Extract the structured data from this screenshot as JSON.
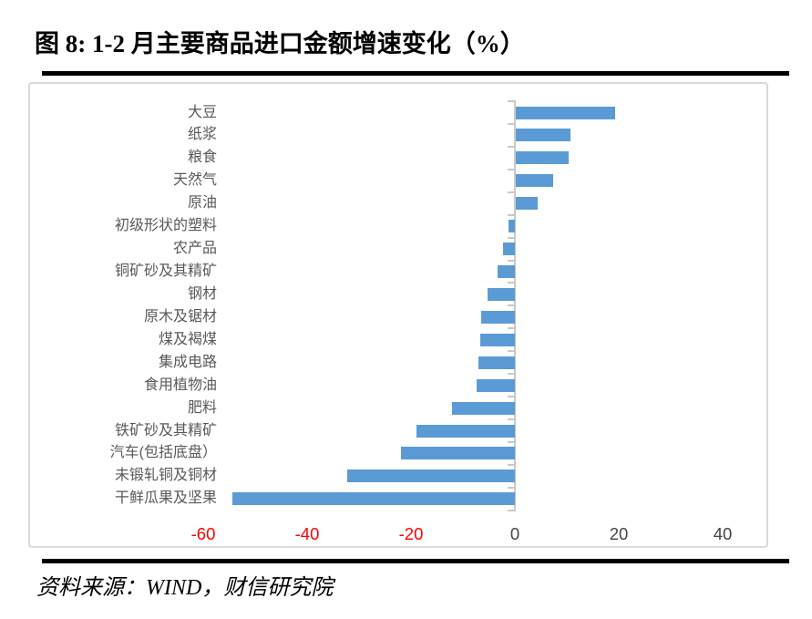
{
  "title": "图 8: 1-2 月主要商品进口金额增速变化（%）",
  "source": "资料来源：WIND，财信研究院",
  "chart_data": {
    "type": "bar",
    "orientation": "horizontal",
    "title": "图 8: 1-2 月主要商品进口金额增速变化（%）",
    "unit": "%",
    "categories": [
      "大豆",
      "纸浆",
      "粮食",
      "天然气",
      "原油",
      "初级形状的塑料",
      "农产品",
      "铜矿砂及其精矿",
      "钢材",
      "原木及锯材",
      "煤及褐煤",
      "集成电路",
      "食用植物油",
      "肥料",
      "铁矿砂及其精矿",
      "汽车(包括底盘）",
      "未锻轧铜及铜材",
      "干鲜瓜果及坚果"
    ],
    "values": [
      19.1,
      10.5,
      10.2,
      7.2,
      4.2,
      -1.2,
      -2.2,
      -3.3,
      -5.3,
      -6.5,
      -6.7,
      -7.0,
      -7.3,
      -12.1,
      -18.9,
      -21.9,
      -32.3,
      -54.3
    ],
    "x_ticks": [
      -60,
      -40,
      -20,
      0,
      20,
      40
    ],
    "xlim": [
      -65,
      49
    ],
    "grid": false,
    "legend": false,
    "colors": {
      "bar": "#5B9BD5",
      "negative_axis_label": "#FF0000",
      "axis_label": "#444444",
      "category_label": "#595959",
      "axis_line": "#C9C9C9",
      "chart_border": "#D9D9D9"
    }
  }
}
